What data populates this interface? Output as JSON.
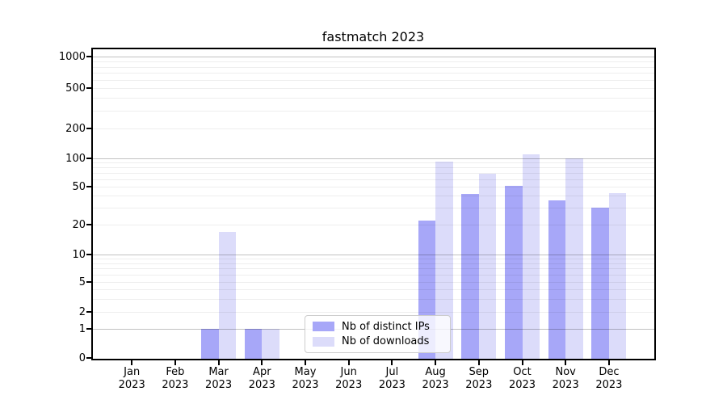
{
  "title": "fastmatch 2023",
  "chart_data": {
    "type": "bar",
    "title": "fastmatch 2023",
    "categories": [
      "Jan 2023",
      "Feb 2023",
      "Mar 2023",
      "Apr 2023",
      "May 2023",
      "Jun 2023",
      "Jul 2023",
      "Aug 2023",
      "Sep 2023",
      "Oct 2023",
      "Nov 2023",
      "Dec 2023"
    ],
    "x_tick_months": [
      "Jan",
      "Feb",
      "Mar",
      "Apr",
      "May",
      "Jun",
      "Jul",
      "Aug",
      "Sep",
      "Oct",
      "Nov",
      "Dec"
    ],
    "x_tick_year": "2023",
    "series": [
      {
        "name": "Nb of distinct IPs",
        "color": "#a7a7f8",
        "values": [
          0,
          0,
          1,
          1,
          0,
          0,
          0,
          22,
          42,
          51,
          36,
          30
        ]
      },
      {
        "name": "Nb of downloads",
        "color": "#dcdcfa",
        "values": [
          0,
          0,
          17,
          1,
          0,
          0,
          0,
          92,
          69,
          110,
          100,
          43
        ]
      }
    ],
    "yscale": "symlog (log above 1, linear 0-1)",
    "y_tick_values": [
      0,
      1,
      2,
      5,
      10,
      20,
      50,
      100,
      200,
      500,
      1000
    ],
    "y_minor_grid_values": [
      2,
      3,
      4,
      5,
      6,
      7,
      8,
      9,
      20,
      30,
      40,
      50,
      60,
      70,
      80,
      90,
      200,
      300,
      400,
      500,
      600,
      700,
      800,
      900
    ],
    "y_major_grid_values": [
      1,
      10,
      100,
      1000
    ],
    "ylim": [
      0,
      1200
    ],
    "grid": "horizontal, drawn over bars",
    "legend_position": "lower center-left inside plot",
    "colors": {
      "axis": "#000000",
      "grid_minor": "rgba(0,0,0,0.065)",
      "grid_major": "rgba(0,0,0,0.24)",
      "background": "#ffffff"
    }
  }
}
